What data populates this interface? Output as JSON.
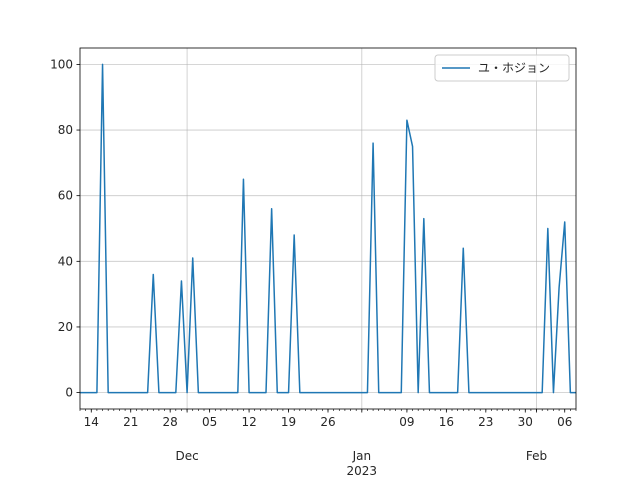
{
  "chart_data": {
    "type": "line",
    "series": [
      {
        "name": "ユ・ホジョン",
        "color": "#1f77b4",
        "x": [
          "2022-11-12",
          "2022-11-13",
          "2022-11-14",
          "2022-11-15",
          "2022-11-16",
          "2022-11-17",
          "2022-11-18",
          "2022-11-19",
          "2022-11-20",
          "2022-11-21",
          "2022-11-22",
          "2022-11-23",
          "2022-11-24",
          "2022-11-25",
          "2022-11-26",
          "2022-11-27",
          "2022-11-28",
          "2022-11-29",
          "2022-11-30",
          "2022-12-01",
          "2022-12-02",
          "2022-12-03",
          "2022-12-04",
          "2022-12-05",
          "2022-12-06",
          "2022-12-07",
          "2022-12-08",
          "2022-12-09",
          "2022-12-10",
          "2022-12-11",
          "2022-12-12",
          "2022-12-13",
          "2022-12-14",
          "2022-12-15",
          "2022-12-16",
          "2022-12-17",
          "2022-12-18",
          "2022-12-19",
          "2022-12-20",
          "2022-12-21",
          "2022-12-22",
          "2022-12-23",
          "2022-12-24",
          "2022-12-25",
          "2022-12-26",
          "2022-12-27",
          "2022-12-28",
          "2022-12-29",
          "2022-12-30",
          "2022-12-31",
          "2023-01-01",
          "2023-01-02",
          "2023-01-03",
          "2023-01-04",
          "2023-01-05",
          "2023-01-06",
          "2023-01-07",
          "2023-01-08",
          "2023-01-09",
          "2023-01-10",
          "2023-01-11",
          "2023-01-12",
          "2023-01-13",
          "2023-01-14",
          "2023-01-15",
          "2023-01-16",
          "2023-01-17",
          "2023-01-18",
          "2023-01-19",
          "2023-01-20",
          "2023-01-21",
          "2023-01-22",
          "2023-01-23",
          "2023-01-24",
          "2023-01-25",
          "2023-01-26",
          "2023-01-27",
          "2023-01-28",
          "2023-01-29",
          "2023-01-30",
          "2023-01-31",
          "2023-02-01",
          "2023-02-02",
          "2023-02-03",
          "2023-02-04",
          "2023-02-05",
          "2023-02-06",
          "2023-02-07",
          "2023-02-08"
        ],
        "values": [
          0,
          0,
          0,
          0,
          100,
          0,
          0,
          0,
          0,
          0,
          0,
          0,
          0,
          36,
          0,
          0,
          0,
          0,
          34,
          0,
          41,
          0,
          0,
          0,
          0,
          0,
          0,
          0,
          0,
          65,
          0,
          0,
          0,
          0,
          56,
          0,
          0,
          0,
          48,
          0,
          0,
          0,
          0,
          0,
          0,
          0,
          0,
          0,
          0,
          0,
          0,
          0,
          76,
          0,
          0,
          0,
          0,
          0,
          83,
          75,
          0,
          53,
          0,
          0,
          0,
          0,
          0,
          0,
          44,
          0,
          0,
          0,
          0,
          0,
          0,
          0,
          0,
          0,
          0,
          0,
          0,
          0,
          0,
          50,
          0,
          32,
          52,
          0,
          0
        ]
      }
    ],
    "x_ticks_major": [
      {
        "date": "2022-11-14",
        "label": "14"
      },
      {
        "date": "2022-11-21",
        "label": "21"
      },
      {
        "date": "2022-11-28",
        "label": "28"
      },
      {
        "date": "2022-12-05",
        "label": "05"
      },
      {
        "date": "2022-12-12",
        "label": "12"
      },
      {
        "date": "2022-12-19",
        "label": "19"
      },
      {
        "date": "2022-12-26",
        "label": "26"
      },
      {
        "date": "2023-01-09",
        "label": "09"
      },
      {
        "date": "2023-01-16",
        "label": "16"
      },
      {
        "date": "2023-01-23",
        "label": "23"
      },
      {
        "date": "2023-01-30",
        "label": "30"
      },
      {
        "date": "2023-02-06",
        "label": "06"
      }
    ],
    "x_ticks_month": [
      {
        "date": "2022-12-01",
        "label": "Dec"
      },
      {
        "date": "2023-01-01",
        "label": "Jan",
        "sublabel": "2023"
      },
      {
        "date": "2023-02-01",
        "label": "Feb"
      }
    ],
    "xlim": [
      "2022-11-12",
      "2023-02-08"
    ],
    "ylim": [
      -5,
      105
    ],
    "y_ticks": [
      0,
      20,
      40,
      60,
      80,
      100
    ],
    "xlabel": "",
    "ylabel": "",
    "title": "",
    "grid": true,
    "legend_position": "top-right"
  }
}
